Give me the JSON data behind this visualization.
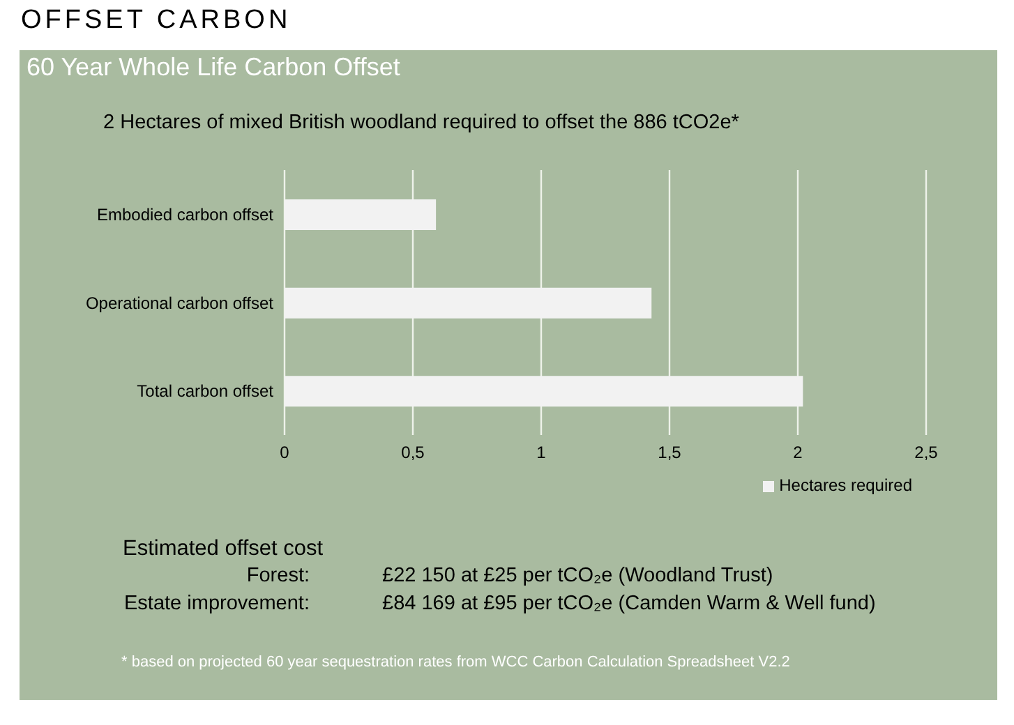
{
  "chart_data": {
    "type": "bar",
    "orientation": "horizontal",
    "title": "OFFSET CARBON",
    "subtitle": "60 Year Whole Life Carbon Offset",
    "categories": [
      "Embodied carbon offset",
      "Operational carbon offset",
      "Total carbon offset"
    ],
    "series": [
      {
        "name": "Hectares required",
        "color": "#f2f2f2",
        "values": [
          0.59,
          1.43,
          2.02
        ]
      }
    ],
    "xlim": [
      0,
      2.5
    ],
    "xticks": [
      0,
      {
        "value": 0.5,
        "label": "0,5"
      },
      1,
      {
        "value": 1.5,
        "label": "1,5"
      },
      2,
      {
        "value": 2.5,
        "label": "2,5"
      }
    ],
    "grid": "x",
    "legend": "bottom right",
    "annotations": [
      "2 Hectares of mixed British woodland required to offset the 886 tCO2e*",
      "Estimated offset cost",
      "Forest:",
      "£22 150 at £25 per tCO₂e (Woodland Trust)",
      "Estate improvement:",
      "£84 169 at £95 per tCO₂e (Camden Warm & Well fund)",
      "* based on projected 60 year sequestration rates from WCC Carbon Calculation Spreadsheet V2.2"
    ]
  }
}
